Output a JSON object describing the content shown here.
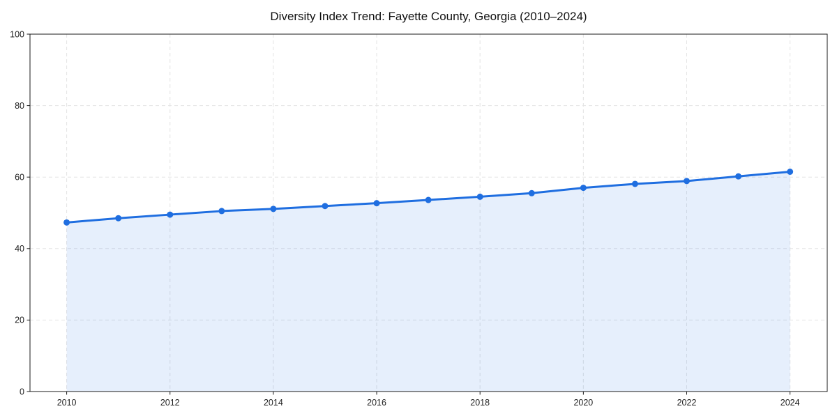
{
  "title": "Diversity Index Trend: Fayette County, Georgia (2010–2024)",
  "colors": {
    "line": "#1f6ee0",
    "marker": "#1f6ee0",
    "area_fill": "rgba(31,110,224,0.11)",
    "grid": "#e3e3e3",
    "spine": "#1a1a1a",
    "tick_mark": "#1a1a1a",
    "tick_label": "#1f1f1f",
    "title_text": "#111111",
    "background": "#ffffff"
  },
  "chart_data": {
    "type": "line",
    "title": "Diversity Index Trend: Fayette County, Georgia (2010–2024)",
    "x": [
      2010,
      2011,
      2012,
      2013,
      2014,
      2015,
      2016,
      2017,
      2018,
      2019,
      2020,
      2021,
      2022,
      2023,
      2024
    ],
    "series": [
      {
        "name": "Diversity Index",
        "values": [
          47.3,
          48.5,
          49.5,
          50.5,
          51.1,
          51.9,
          52.7,
          53.6,
          54.5,
          55.5,
          57.0,
          58.1,
          58.9,
          60.2,
          61.5
        ]
      }
    ],
    "xlabel": "",
    "ylabel": "",
    "xlim": [
      2009.29,
      2024.72
    ],
    "ylim": [
      0,
      100
    ],
    "xticks": [
      2010,
      2012,
      2014,
      2016,
      2018,
      2020,
      2022,
      2024
    ],
    "yticks": [
      0,
      20,
      40,
      60,
      80,
      100
    ],
    "grid": true,
    "grid_style": "dashed",
    "legend": false,
    "marker": "circle",
    "marker_radius": 4.5,
    "line_width": 3,
    "area_fill": true
  }
}
